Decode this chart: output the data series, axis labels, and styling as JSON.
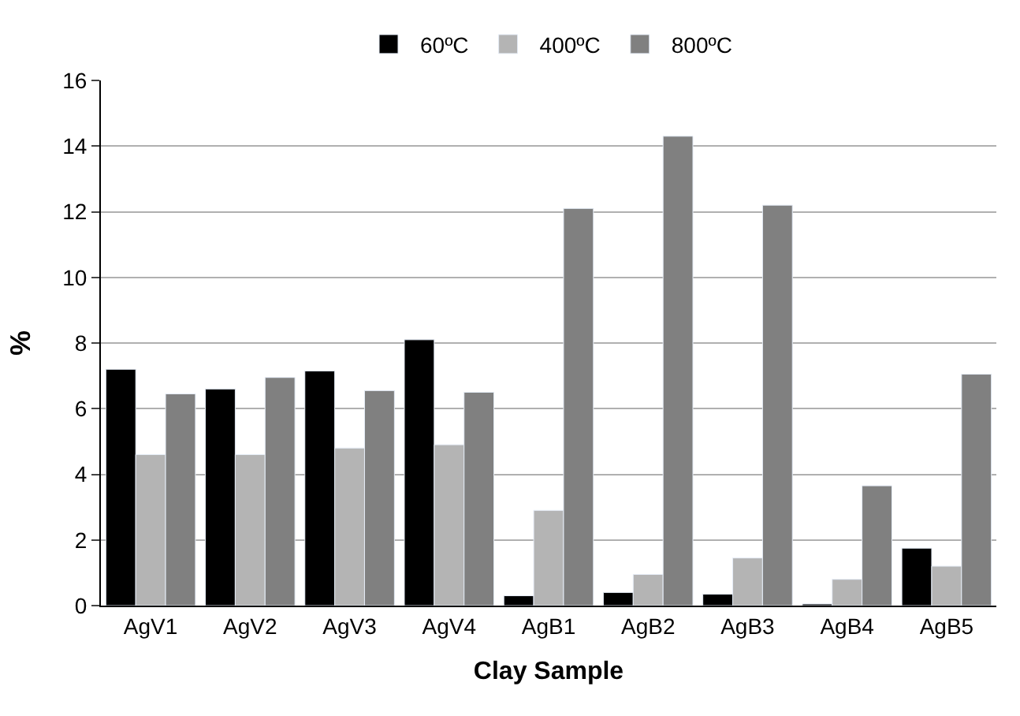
{
  "chart_data": {
    "type": "bar",
    "xlabel": "Clay Sample",
    "ylabel": "%",
    "categories": [
      "AgV1",
      "AgV2",
      "AgV3",
      "AgV4",
      "AgB1",
      "AgB2",
      "AgB3",
      "AgB4",
      "AgB5"
    ],
    "series": [
      {
        "name": "60ºC",
        "color": "#000000",
        "values": [
          7.2,
          6.6,
          7.15,
          8.1,
          0.3,
          0.4,
          0.35,
          0.05,
          1.75
        ]
      },
      {
        "name": "400ºC",
        "color": "#b4b4b4",
        "values": [
          4.6,
          4.6,
          4.8,
          4.9,
          2.9,
          0.95,
          1.45,
          0.8,
          1.2
        ]
      },
      {
        "name": "800ºC",
        "color": "#808080",
        "values": [
          6.45,
          6.95,
          6.55,
          6.5,
          12.1,
          14.3,
          12.2,
          3.65,
          7.05
        ]
      }
    ],
    "ylim": [
      0,
      16
    ],
    "yticks": [
      0,
      2,
      4,
      6,
      8,
      10,
      12,
      14,
      16
    ],
    "grid": "y",
    "legend": "top"
  }
}
